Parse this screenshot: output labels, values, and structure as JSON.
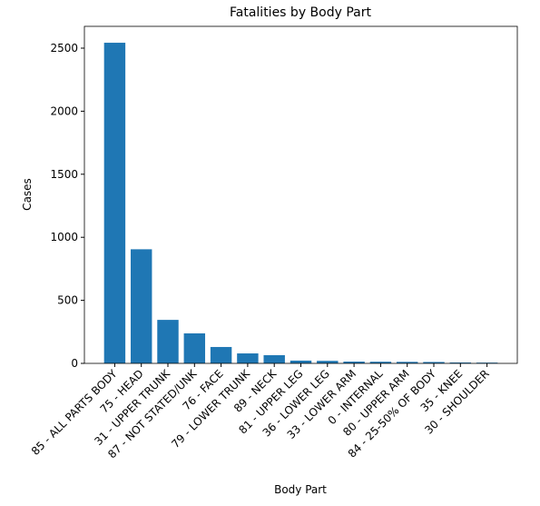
{
  "chart_data": {
    "type": "bar",
    "title": "Fatalities by Body Part",
    "xlabel": "Body Part",
    "ylabel": "Cases",
    "categories": [
      "85 - ALL PARTS BODY",
      "75 - HEAD",
      "31 - UPPER TRUNK",
      "87 - NOT STATED/UNK",
      "76 - FACE",
      "79 - LOWER TRUNK",
      "89 - NECK",
      "81 - UPPER LEG",
      "36 - LOWER LEG",
      "33 - LOWER ARM",
      "0 - INTERNAL",
      "80 - UPPER ARM",
      "84 - 25-50% OF BODY",
      "35 - KNEE",
      "30 - SHOULDER"
    ],
    "values": [
      2543,
      905,
      345,
      238,
      130,
      79,
      65,
      22,
      20,
      14,
      13,
      12,
      11,
      7,
      6
    ],
    "color": "#1f77b4",
    "ylim": [
      0,
      2673
    ],
    "yticks": [
      0,
      500,
      1000,
      1500,
      2000,
      2500
    ]
  }
}
